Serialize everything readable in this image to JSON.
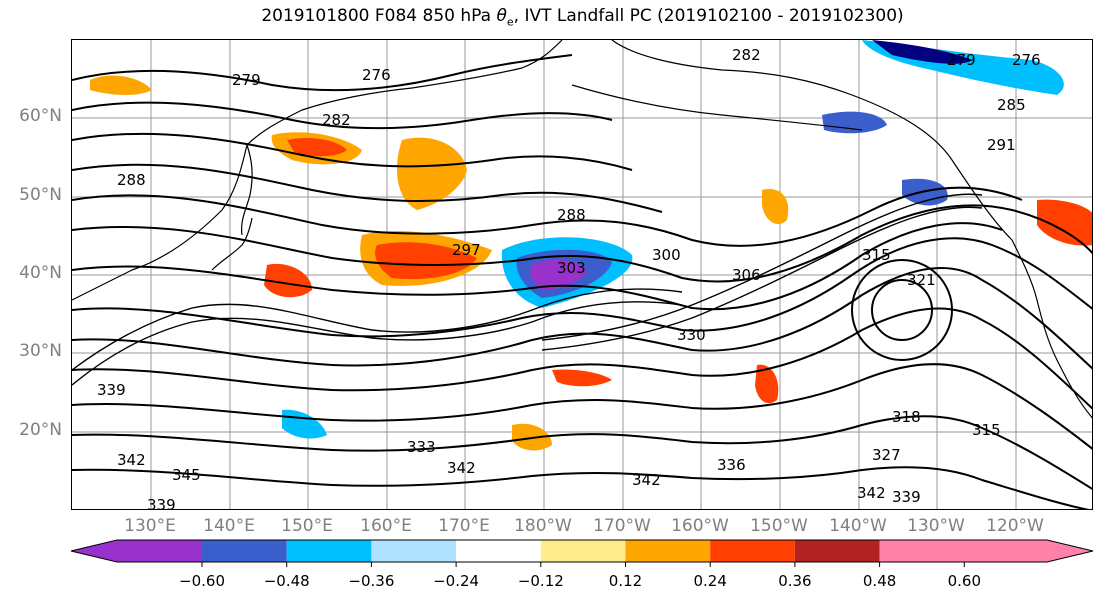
{
  "title": {
    "prefix": "2019101800 F084 850 hPa ",
    "theta": "θ",
    "theta_sub": "e",
    "suffix": ", IVT Landfall PC (2019102100 - 2019102300)"
  },
  "map": {
    "lat_labels": [
      "60°N",
      "50°N",
      "40°N",
      "30°N",
      "20°N"
    ],
    "lon_labels": [
      "130°E",
      "140°E",
      "150°E",
      "160°E",
      "170°E",
      "180°W",
      "170°W",
      "160°W",
      "150°W",
      "140°W",
      "130°W",
      "120°W"
    ],
    "contour_labels": [
      "279",
      "276",
      "282",
      "282",
      "279",
      "276",
      "285",
      "291",
      "288",
      "288",
      "297",
      "300",
      "306",
      "303",
      "315",
      "321",
      "330",
      "339",
      "333",
      "342",
      "345",
      "339",
      "342",
      "336",
      "342",
      "327",
      "318",
      "342",
      "339",
      "315"
    ]
  },
  "colorbar": {
    "ticks": [
      "−0.60",
      "−0.48",
      "−0.36",
      "−0.24",
      "−0.12",
      "0.12",
      "0.24",
      "0.36",
      "0.48",
      "0.60"
    ],
    "colors": [
      "#9932cc",
      "#000080",
      "#3a5fcd",
      "#00bfff",
      "#b0e2ff",
      "#ffffff",
      "#ffec8b",
      "#ffa500",
      "#ff4000",
      "#b22222",
      "#ff82ab"
    ]
  }
}
